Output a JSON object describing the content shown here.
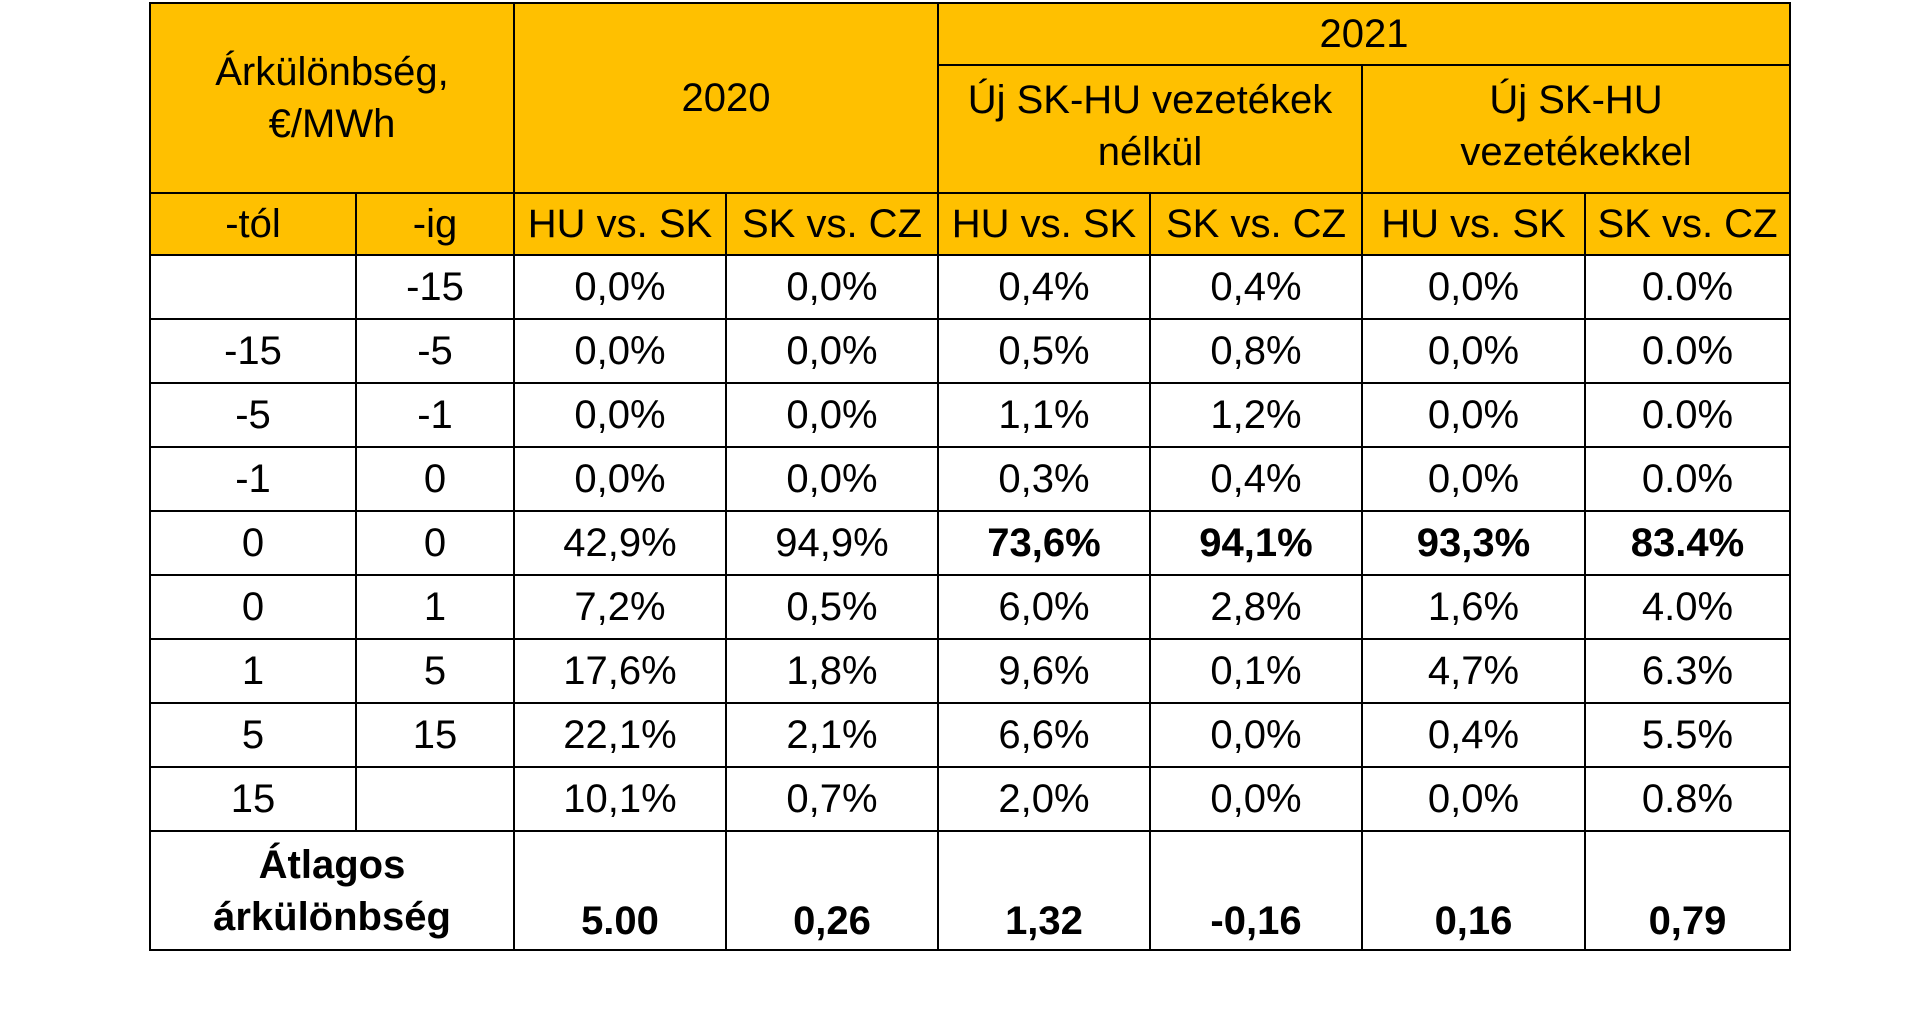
{
  "header": {
    "price_diff_label_line1": "Árkülönbség,",
    "price_diff_label_line2": "€/MWh",
    "year_2020": "2020",
    "year_2021": "2021",
    "without_new_lines_line1": "Új SK-HU vezetékek",
    "without_new_lines_line2": "nélkül",
    "with_new_lines_line1": "Új SK-HU",
    "with_new_lines_line2": "vezetékekkel",
    "col_from": "-tól",
    "col_to": "-ig",
    "col_hu_sk": "HU vs. SK",
    "col_sk_cz": "SK vs. CZ"
  },
  "rows": [
    {
      "from": "",
      "to": "-15",
      "v": [
        "0,0%",
        "0,0%",
        "0,4%",
        "0,4%",
        "0,0%",
        "0.0%"
      ]
    },
    {
      "from": "-15",
      "to": "-5",
      "v": [
        "0,0%",
        "0,0%",
        "0,5%",
        "0,8%",
        "0,0%",
        "0.0%"
      ]
    },
    {
      "from": "-5",
      "to": "-1",
      "v": [
        "0,0%",
        "0,0%",
        "1,1%",
        "1,2%",
        "0,0%",
        "0.0%"
      ]
    },
    {
      "from": "-1",
      "to": "0",
      "v": [
        "0,0%",
        "0,0%",
        "0,3%",
        "0,4%",
        "0,0%",
        "0.0%"
      ]
    },
    {
      "from": "0",
      "to": "0",
      "v": [
        "42,9%",
        "94,9%",
        "73,6%",
        "94,1%",
        "93,3%",
        "83.4%"
      ]
    },
    {
      "from": "0",
      "to": "1",
      "v": [
        "7,2%",
        "0,5%",
        "6,0%",
        "2,8%",
        "1,6%",
        "4.0%"
      ]
    },
    {
      "from": "1",
      "to": "5",
      "v": [
        "17,6%",
        "1,8%",
        "9,6%",
        "0,1%",
        "4,7%",
        "6.3%"
      ]
    },
    {
      "from": "5",
      "to": "15",
      "v": [
        "22,1%",
        "2,1%",
        "6,6%",
        "0,0%",
        "0,4%",
        "5.5%"
      ]
    },
    {
      "from": "15",
      "to": "",
      "v": [
        "10,1%",
        "0,7%",
        "2,0%",
        "0,0%",
        "0,0%",
        "0.8%"
      ]
    }
  ],
  "average": {
    "label_line1": "Átlagos",
    "label_line2": "árkülönbség",
    "v": [
      "5.00",
      "0,26",
      "1,32",
      "-0,16",
      "0,16",
      "0,79"
    ]
  }
}
